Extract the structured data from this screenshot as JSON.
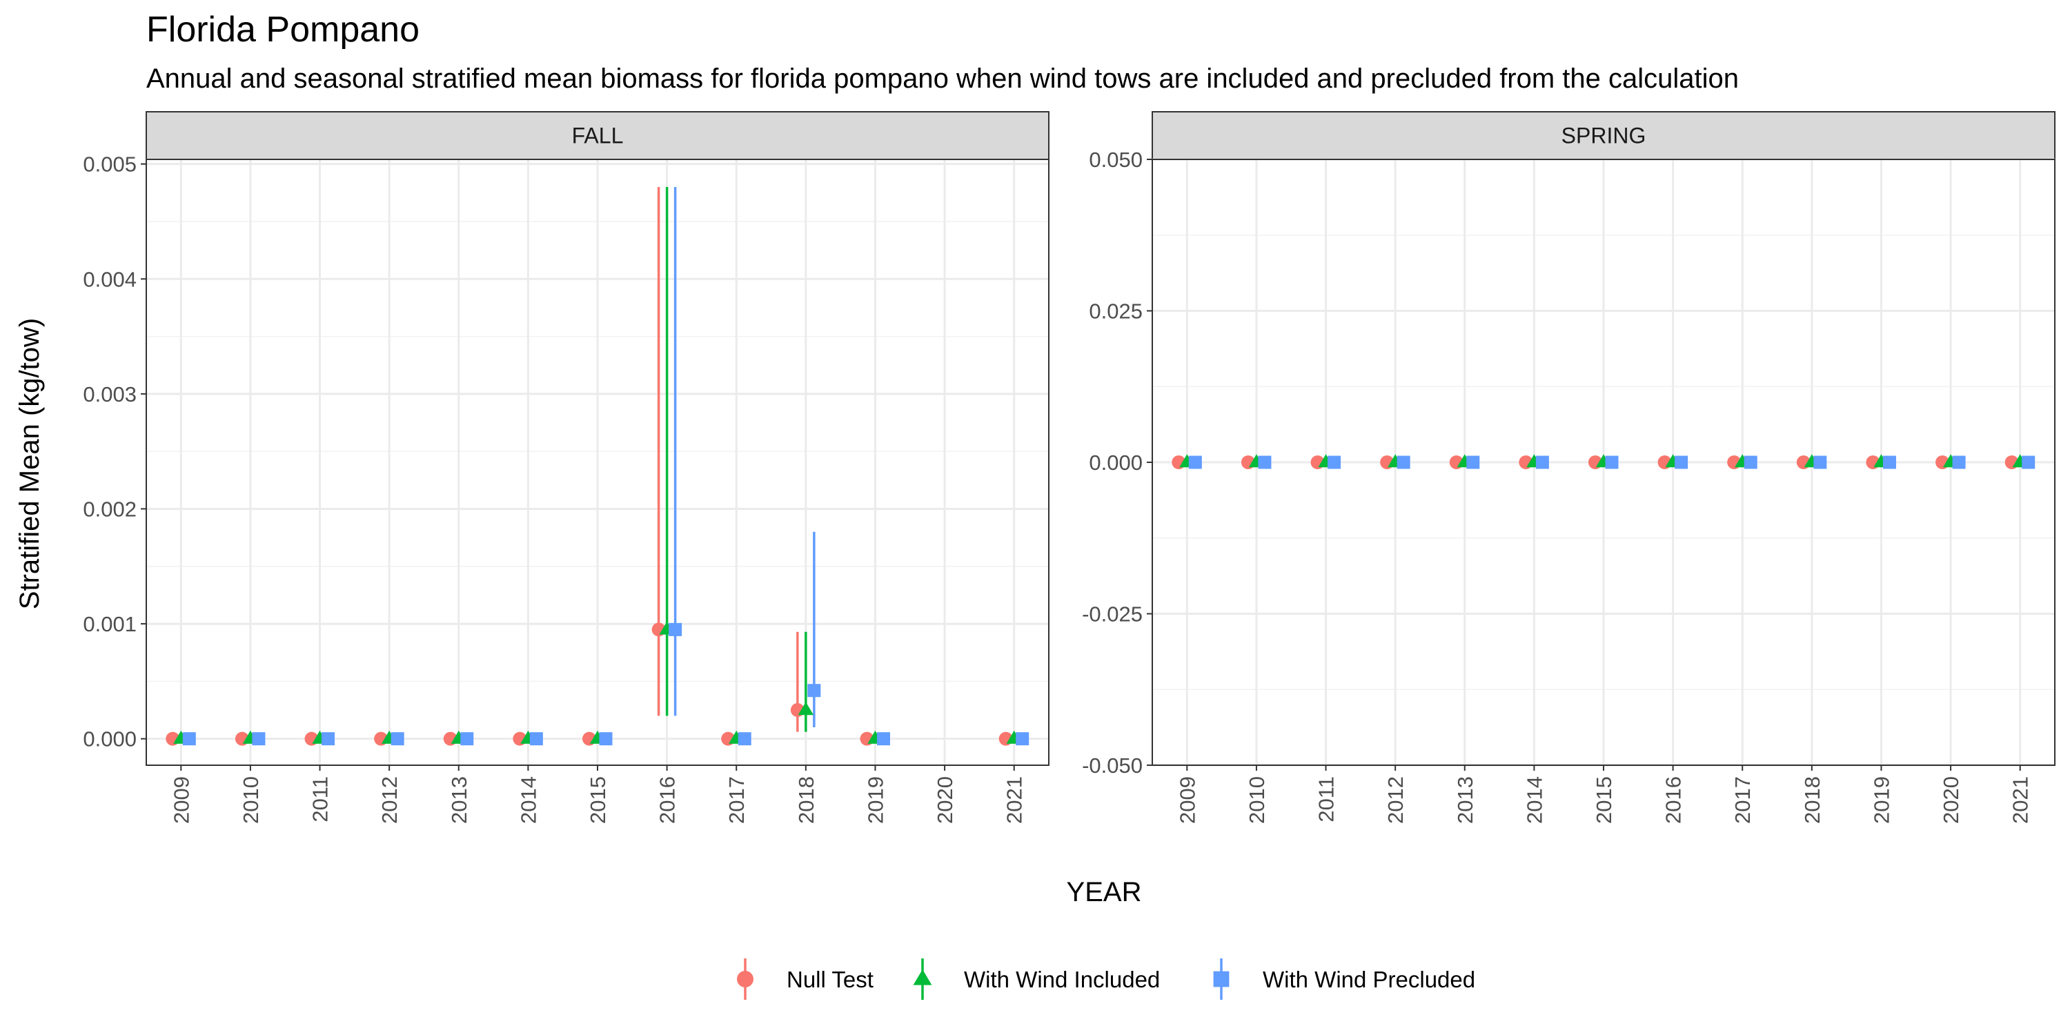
{
  "title": "Florida Pompano",
  "subtitle": "Annual and seasonal stratified mean biomass for florida pompano when wind tows are included and precluded from the calculation",
  "chart_data": {
    "type": "scatter",
    "subtype": "point-range (faceted)",
    "xlabel": "YEAR",
    "ylabel": "Stratified Mean (kg/tow)",
    "x_categories": [
      "2009",
      "2010",
      "2011",
      "2012",
      "2013",
      "2014",
      "2015",
      "2016",
      "2017",
      "2018",
      "2019",
      "2020",
      "2021"
    ],
    "grid": true,
    "legend_position": "bottom",
    "legend": [
      {
        "name": "Null Test",
        "color": "#F8766D",
        "shape": "circle"
      },
      {
        "name": "With Wind Included",
        "color": "#00BA38",
        "shape": "triangle"
      },
      {
        "name": "With Wind Precluded",
        "color": "#619CFF",
        "shape": "square"
      }
    ],
    "facets": [
      {
        "label": "FALL",
        "ylim": [
          -0.00023,
          0.00504
        ],
        "yticks": [
          0.0,
          0.001,
          0.002,
          0.003,
          0.004,
          0.005
        ],
        "ytick_labels": [
          "0.000",
          "0.001",
          "0.002",
          "0.003",
          "0.004",
          "0.005"
        ],
        "series": [
          {
            "name": "Null Test",
            "x": [
              "2009",
              "2010",
              "2011",
              "2012",
              "2013",
              "2014",
              "2015",
              "2016",
              "2017",
              "2018",
              "2019",
              "2021"
            ],
            "y": [
              0,
              0,
              0,
              0,
              0,
              0,
              0,
              0.00095,
              0,
              0.00025,
              0,
              0
            ],
            "ymin": [
              null,
              null,
              null,
              null,
              null,
              null,
              null,
              0.0002,
              null,
              6e-05,
              null,
              null
            ],
            "ymax": [
              null,
              null,
              null,
              null,
              null,
              null,
              null,
              0.0048,
              null,
              0.00093,
              null,
              null
            ]
          },
          {
            "name": "With Wind Included",
            "x": [
              "2009",
              "2010",
              "2011",
              "2012",
              "2013",
              "2014",
              "2015",
              "2016",
              "2017",
              "2018",
              "2019",
              "2021"
            ],
            "y": [
              0,
              0,
              0,
              0,
              0,
              0,
              0,
              0.00095,
              0,
              0.00025,
              0,
              0
            ],
            "ymin": [
              null,
              null,
              null,
              null,
              null,
              null,
              null,
              0.0002,
              null,
              6e-05,
              null,
              null
            ],
            "ymax": [
              null,
              null,
              null,
              null,
              null,
              null,
              null,
              0.0048,
              null,
              0.00093,
              null,
              null
            ]
          },
          {
            "name": "With Wind Precluded",
            "x": [
              "2009",
              "2010",
              "2011",
              "2012",
              "2013",
              "2014",
              "2015",
              "2016",
              "2017",
              "2018",
              "2019",
              "2021"
            ],
            "y": [
              0,
              0,
              0,
              0,
              0,
              0,
              0,
              0.00095,
              0,
              0.00042,
              0,
              0
            ],
            "ymin": [
              null,
              null,
              null,
              null,
              null,
              null,
              null,
              0.0002,
              null,
              0.0001,
              null,
              null
            ],
            "ymax": [
              null,
              null,
              null,
              null,
              null,
              null,
              null,
              0.0048,
              null,
              0.0018,
              null,
              null
            ]
          }
        ]
      },
      {
        "label": "SPRING",
        "ylim": [
          -0.05,
          0.05
        ],
        "yticks": [
          -0.05,
          -0.025,
          0.0,
          0.025,
          0.05
        ],
        "ytick_labels": [
          "-0.050",
          "-0.025",
          "0.000",
          "0.025",
          "0.050"
        ],
        "series": [
          {
            "name": "Null Test",
            "x": [
              "2009",
              "2010",
              "2011",
              "2012",
              "2013",
              "2014",
              "2015",
              "2016",
              "2017",
              "2018",
              "2019",
              "2020",
              "2021"
            ],
            "y": [
              0,
              0,
              0,
              0,
              0,
              0,
              0,
              0,
              0,
              0,
              0,
              0,
              0
            ]
          },
          {
            "name": "With Wind Included",
            "x": [
              "2009",
              "2010",
              "2011",
              "2012",
              "2013",
              "2014",
              "2015",
              "2016",
              "2017",
              "2018",
              "2019",
              "2020",
              "2021"
            ],
            "y": [
              0,
              0,
              0,
              0,
              0,
              0,
              0,
              0,
              0,
              0,
              0,
              0,
              0
            ]
          },
          {
            "name": "With Wind Precluded",
            "x": [
              "2009",
              "2010",
              "2011",
              "2012",
              "2013",
              "2014",
              "2015",
              "2016",
              "2017",
              "2018",
              "2019",
              "2020",
              "2021"
            ],
            "y": [
              0,
              0,
              0,
              0,
              0,
              0,
              0,
              0,
              0,
              0,
              0,
              0,
              0
            ]
          }
        ]
      }
    ]
  }
}
